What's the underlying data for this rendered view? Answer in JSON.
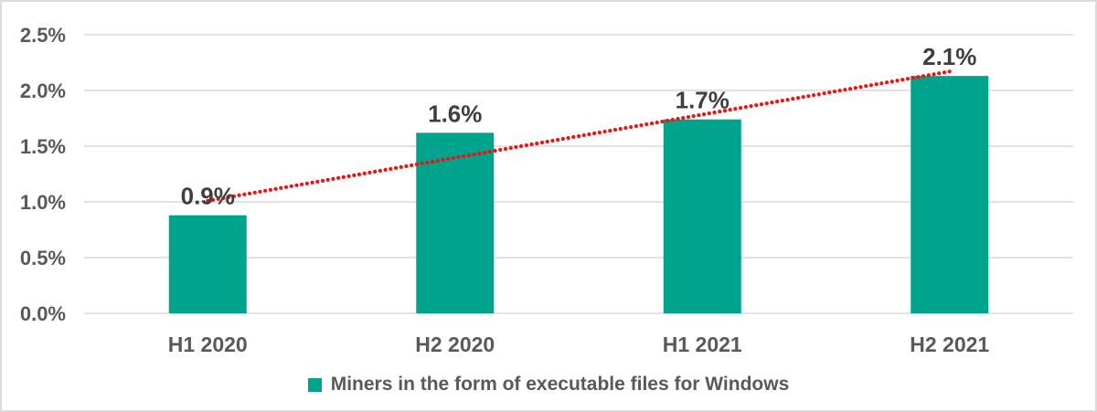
{
  "chart_data": {
    "type": "bar",
    "title": "",
    "categories": [
      "H1 2020",
      "H2 2020",
      "H1 2021",
      "H2 2021"
    ],
    "values": [
      0.9,
      1.6,
      1.7,
      2.1
    ],
    "value_labels": [
      "0.9%",
      "1.6%",
      "1.7%",
      "2.1%"
    ],
    "plotted_values": [
      0.88,
      1.62,
      1.74,
      2.13
    ],
    "unit": "%",
    "xlabel": "",
    "ylabel": "",
    "ylim": [
      0,
      2.5
    ],
    "y_ticks": [
      0,
      0.5,
      1,
      1.5,
      2,
      2.5
    ],
    "y_tick_labels": [
      "0.0%",
      "0.5%",
      "1.0%",
      "1.5%",
      "2.0%",
      "2.5%"
    ],
    "grid": "horizontal",
    "legend_position": "bottom",
    "series": [
      {
        "name": "Miners in the form of executable files for Windows",
        "color": "#00a38b"
      }
    ],
    "trendline": {
      "type": "linear",
      "style": "round-dotted",
      "color": "#ee1414",
      "start_value": 1.01,
      "end_value": 2.17
    }
  },
  "colors": {
    "axis_text": "#595959",
    "value_label_text": "#3f3f3f",
    "gridline": "#d9d9d9",
    "frame_border": "#dcdcdc",
    "background": "#ffffff"
  }
}
